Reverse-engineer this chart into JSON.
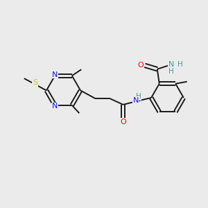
{
  "bg_color": "#ebebeb",
  "bond_color": "#1a1a1a",
  "bond_width": 1.4,
  "figsize": [
    3.0,
    3.0
  ],
  "dpi": 100,
  "atom_colors": {
    "N": "#1414ff",
    "O": "#ff0000",
    "S": "#cccc00",
    "NH": "#4a9999",
    "C": "#1a1a1a"
  },
  "xlim": [
    0,
    10
  ],
  "ylim": [
    0,
    10
  ]
}
